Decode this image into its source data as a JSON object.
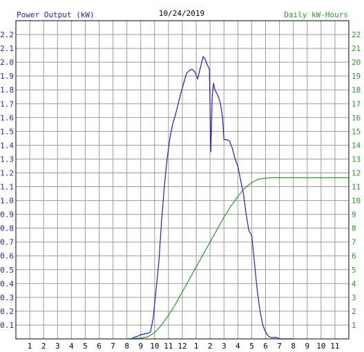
{
  "chart_data": {
    "type": "line",
    "title": "10/24/2019",
    "left_label": "Power Output (kW)",
    "right_label": "Daily kW-Hours",
    "colors": {
      "power": "#1c1ccf",
      "energy": "#2a9a2a",
      "grid": "#9a9a9a",
      "left_text": "#1c1ccf",
      "right_text": "#2a9a2a",
      "frame": "#000000"
    },
    "x_range": [
      0,
      24
    ],
    "x_ticks": [
      "1",
      "2",
      "3",
      "4",
      "5",
      "6",
      "7",
      "8",
      "9",
      "10",
      "11",
      "12",
      "1",
      "2",
      "3",
      "4",
      "5",
      "6",
      "7",
      "8",
      "9",
      "10",
      "11"
    ],
    "left_ylim": [
      0,
      2.3
    ],
    "left_ticks": [
      "0.1",
      "0.2",
      "0.3",
      "0.4",
      "0.5",
      "0.6",
      "0.7",
      "0.8",
      "0.9",
      "1.0",
      "1.1",
      "1.2",
      "1.3",
      "1.4",
      "1.5",
      "1.6",
      "1.7",
      "1.8",
      "1.9",
      "2.0",
      "2.1",
      "2.2"
    ],
    "right_ylim": [
      0,
      23
    ],
    "right_ticks": [
      "1",
      "2",
      "3",
      "4",
      "5",
      "6",
      "7",
      "8",
      "9",
      "10",
      "11",
      "12",
      "13",
      "14",
      "15",
      "16",
      "17",
      "18",
      "19",
      "20",
      "21",
      "22"
    ],
    "grid": true,
    "series": [
      {
        "key": "power",
        "axis": "left",
        "x": [
          8.3,
          8.5,
          8.8,
          9.0,
          9.5,
          9.7,
          9.9,
          10.0,
          10.1,
          10.3,
          10.5,
          10.7,
          10.9,
          11.1,
          11.3,
          11.5,
          11.7,
          11.9,
          12.1,
          12.3,
          12.5,
          12.7,
          12.9,
          13.1,
          13.2,
          13.35,
          13.5,
          13.65,
          13.8,
          13.95,
          14.05,
          14.15,
          14.25,
          14.35,
          14.45,
          14.6,
          14.75,
          14.9,
          15.0,
          15.2,
          15.4,
          15.6,
          15.8,
          16.0,
          16.2,
          16.4,
          16.6,
          16.8,
          17.0,
          17.2,
          17.4,
          17.6,
          17.8,
          18.0,
          18.2,
          18.4,
          18.6,
          18.8,
          19.0,
          19.2,
          19.5,
          20.0
        ],
        "y": [
          0.0,
          0.01,
          0.02,
          0.03,
          0.04,
          0.05,
          0.15,
          0.25,
          0.35,
          0.55,
          0.85,
          1.1,
          1.3,
          1.45,
          1.55,
          1.62,
          1.7,
          1.78,
          1.85,
          1.92,
          1.94,
          1.95,
          1.93,
          1.88,
          1.92,
          1.98,
          2.04,
          2.02,
          1.98,
          1.95,
          1.35,
          1.75,
          1.85,
          1.8,
          1.78,
          1.75,
          1.7,
          1.6,
          1.44,
          1.44,
          1.43,
          1.38,
          1.3,
          1.25,
          1.15,
          1.05,
          0.9,
          0.78,
          0.75,
          0.55,
          0.35,
          0.2,
          0.1,
          0.05,
          0.02,
          0.01,
          0.01,
          0.01,
          0.0,
          0.0,
          0.0,
          0.0
        ]
      },
      {
        "key": "energy",
        "axis": "right",
        "x": [
          8.0,
          9.0,
          9.5,
          10.0,
          10.5,
          11.0,
          11.5,
          12.0,
          12.5,
          13.0,
          13.5,
          14.0,
          14.5,
          15.0,
          15.5,
          16.0,
          16.5,
          17.0,
          17.5,
          18.0,
          18.5,
          19.0,
          20.0,
          21.0,
          22.0,
          23.0,
          24.0
        ],
        "y": [
          0.0,
          0.05,
          0.15,
          0.45,
          1.0,
          1.7,
          2.5,
          3.4,
          4.3,
          5.2,
          6.1,
          7.0,
          7.9,
          8.8,
          9.6,
          10.3,
          10.9,
          11.3,
          11.55,
          11.62,
          11.65,
          11.65,
          11.65,
          11.65,
          11.65,
          11.65,
          11.65
        ]
      }
    ]
  }
}
